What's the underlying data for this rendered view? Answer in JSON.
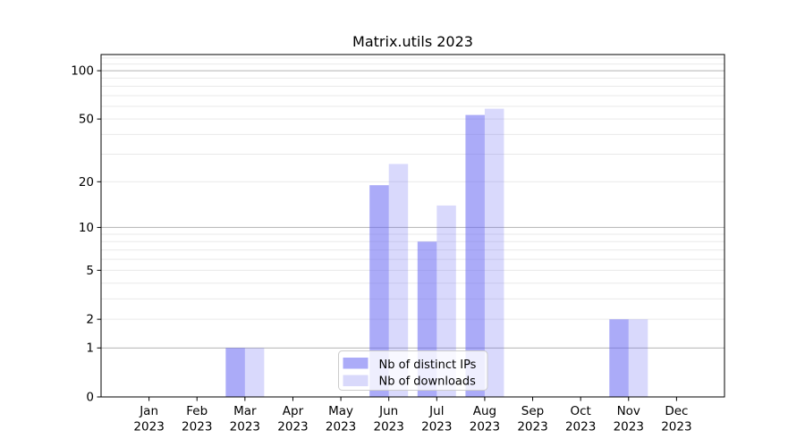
{
  "chart_data": {
    "type": "bar",
    "title": "Matrix.utils 2023",
    "year": "2023",
    "categories": [
      "Jan",
      "Feb",
      "Mar",
      "Apr",
      "May",
      "Jun",
      "Jul",
      "Aug",
      "Sep",
      "Oct",
      "Nov",
      "Dec"
    ],
    "series": [
      {
        "name": "Nb of distinct IPs",
        "values": [
          0,
          0,
          1,
          0,
          0,
          19,
          8,
          53,
          0,
          0,
          2,
          0
        ]
      },
      {
        "name": "Nb of downloads",
        "values": [
          0,
          0,
          1,
          0,
          0,
          26,
          14,
          58,
          0,
          0,
          2,
          0
        ]
      }
    ],
    "yscale": "log1p",
    "ylim": [
      0,
      126
    ],
    "yticks": [
      100,
      50,
      20,
      10,
      5,
      2,
      1,
      0
    ],
    "gridlines": {
      "major": [
        1,
        10,
        100
      ],
      "minor": [
        2,
        3,
        4,
        5,
        6,
        7,
        8,
        9,
        20,
        30,
        40,
        50,
        60,
        70,
        80,
        90,
        110,
        120
      ]
    },
    "legend": {
      "position": "lower center"
    },
    "grid": true,
    "colors": {
      "bar_base": "#6666f2",
      "series_opacity": [
        0.55,
        0.25
      ],
      "swatch": [
        "#ababf8",
        "#d9d9fb"
      ],
      "grid_major": "#b2b2b2",
      "grid_minor": "#e9e9e9",
      "spine": "#000000",
      "text": "#000000",
      "legend_border": "#cccccc"
    }
  }
}
